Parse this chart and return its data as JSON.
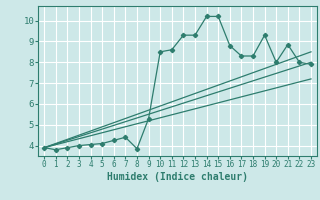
{
  "xlabel": "Humidex (Indice chaleur)",
  "bg_color": "#cde8e8",
  "grid_color": "#ffffff",
  "line_color": "#2e7d6e",
  "xlim": [
    -0.5,
    23.5
  ],
  "ylim": [
    3.5,
    10.7
  ],
  "xticks": [
    0,
    1,
    2,
    3,
    4,
    5,
    6,
    7,
    8,
    9,
    10,
    11,
    12,
    13,
    14,
    15,
    16,
    17,
    18,
    19,
    20,
    21,
    22,
    23
  ],
  "yticks": [
    4,
    5,
    6,
    7,
    8,
    9,
    10
  ],
  "scatter_x": [
    0,
    1,
    2,
    3,
    4,
    5,
    6,
    7,
    8,
    9,
    10,
    11,
    12,
    13,
    14,
    15,
    16,
    17,
    18,
    19,
    20,
    21,
    22,
    23
  ],
  "scatter_y": [
    3.9,
    3.8,
    3.9,
    4.0,
    4.05,
    4.1,
    4.25,
    4.4,
    3.85,
    5.3,
    8.5,
    8.6,
    9.3,
    9.3,
    10.2,
    10.2,
    8.8,
    8.3,
    8.3,
    9.3,
    8.0,
    8.85,
    8.0,
    7.9
  ],
  "line1_x": [
    0,
    23
  ],
  "line1_y": [
    3.9,
    8.0
  ],
  "line2_x": [
    0,
    23
  ],
  "line2_y": [
    3.9,
    8.5
  ],
  "line3_x": [
    0,
    23
  ],
  "line3_y": [
    3.9,
    7.2
  ]
}
